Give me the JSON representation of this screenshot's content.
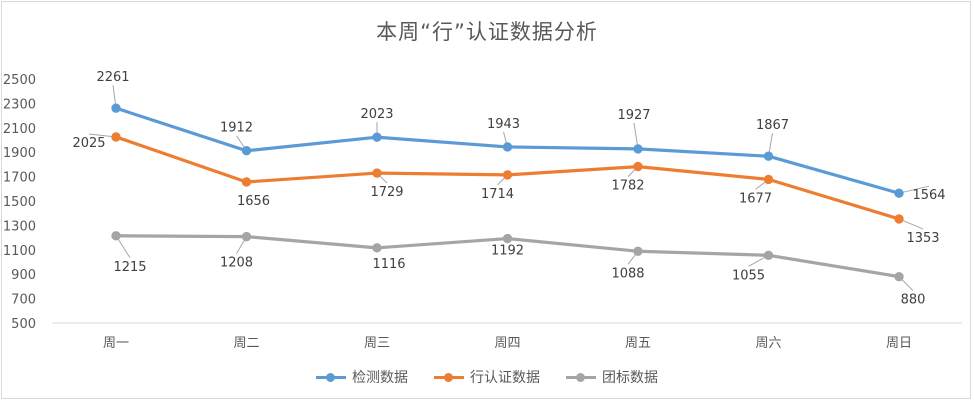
{
  "chart_data": {
    "type": "line",
    "title": "本周“行”认证数据分析",
    "categories": [
      "周一",
      "周二",
      "周三",
      "周四",
      "周五",
      "周六",
      "周日"
    ],
    "ylim": [
      500,
      2500
    ],
    "yticks": [
      500,
      700,
      900,
      1100,
      1300,
      1500,
      1700,
      1900,
      2100,
      2300,
      2500
    ],
    "grid": false,
    "legend_position": "bottom",
    "series": [
      {
        "name": "检测数据",
        "color": "#5B9BD5",
        "values": [
          2261,
          1912,
          2023,
          1943,
          1927,
          1867,
          1564
        ]
      },
      {
        "name": "行认证数据",
        "color": "#ED7D31",
        "values": [
          2025,
          1656,
          1729,
          1714,
          1782,
          1677,
          1353
        ]
      },
      {
        "name": "团标数据",
        "color": "#A5A5A5",
        "values": [
          1215,
          1208,
          1116,
          1192,
          1088,
          1055,
          880
        ]
      }
    ]
  }
}
